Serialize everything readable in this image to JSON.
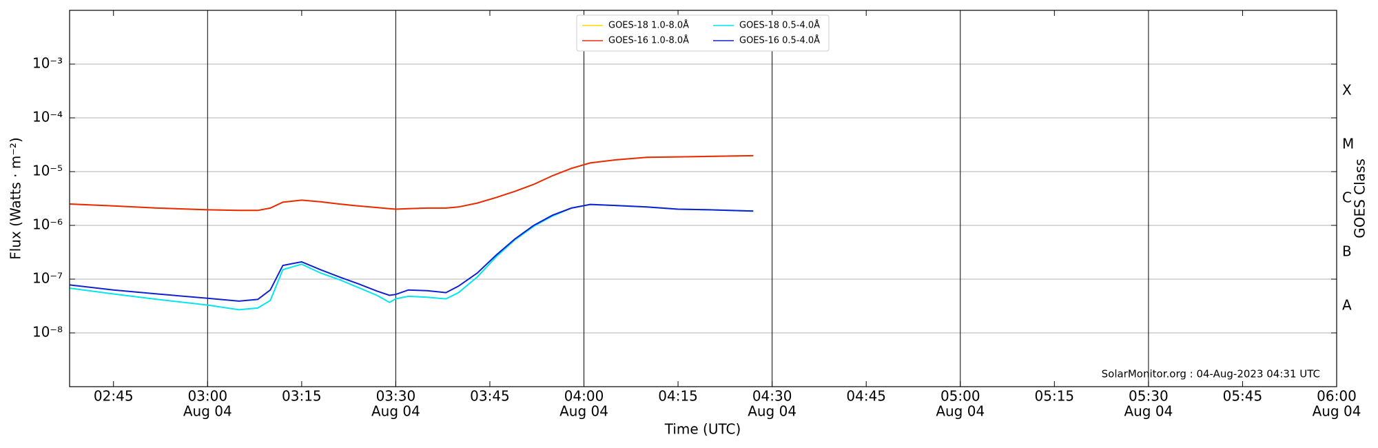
{
  "chart_data": {
    "type": "line",
    "ylabel": "Flux (Watts · m⁻²)",
    "xlabel": "Time (UTC)",
    "y2label": "GOES Class",
    "annotation": "SolarMonitor.org : 04-Aug-2023 04:31 UTC",
    "log_y": true,
    "grid": true,
    "legend_position": "top",
    "ylim": [
      1e-09,
      0.01
    ],
    "yticks": [
      {
        "value": 1e-08,
        "label": "10⁻⁸"
      },
      {
        "value": 1e-07,
        "label": "10⁻⁷"
      },
      {
        "value": 1e-06,
        "label": "10⁻⁶"
      },
      {
        "value": 1e-05,
        "label": "10⁻⁵"
      },
      {
        "value": 0.0001,
        "label": "10⁻⁴"
      },
      {
        "value": 0.001,
        "label": "10⁻³"
      }
    ],
    "goes_classes": [
      {
        "label": "A",
        "range": [
          1e-08,
          1e-07
        ]
      },
      {
        "label": "B",
        "range": [
          1e-07,
          1e-06
        ]
      },
      {
        "label": "C",
        "range": [
          1e-06,
          1e-05
        ]
      },
      {
        "label": "M",
        "range": [
          1e-05,
          0.0001
        ]
      },
      {
        "label": "X",
        "range": [
          0.0001,
          0.001
        ]
      }
    ],
    "xlim": [
      "02:38",
      "06:00"
    ],
    "xticks": [
      "02:45",
      {
        "value": "03:00",
        "label": [
          "03:00",
          "Aug 04"
        ]
      },
      "03:15",
      {
        "value": "03:30",
        "label": [
          "03:30",
          "Aug 04"
        ]
      },
      "03:45",
      {
        "value": "04:00",
        "label": [
          "04:00",
          "Aug 04"
        ]
      },
      "04:15",
      {
        "value": "04:30",
        "label": [
          "04:30",
          "Aug 04"
        ]
      },
      "04:45",
      {
        "value": "05:00",
        "label": [
          "05:00",
          "Aug 04"
        ]
      },
      "05:15",
      {
        "value": "05:30",
        "label": [
          "05:30",
          "Aug 04"
        ]
      },
      "05:45",
      {
        "value": "06:00",
        "label": [
          "06:00",
          "Aug 04"
        ]
      }
    ],
    "x": [
      "02:38",
      "02:45",
      "02:52",
      "03:00",
      "03:05",
      "03:08",
      "03:10",
      "03:12",
      "03:15",
      "03:18",
      "03:21",
      "03:24",
      "03:27",
      "03:29",
      "03:30",
      "03:32",
      "03:35",
      "03:38",
      "03:40",
      "03:43",
      "03:46",
      "03:49",
      "03:52",
      "03:55",
      "03:58",
      "04:01",
      "04:05",
      "04:10",
      "04:15",
      "04:20",
      "04:27"
    ],
    "series": [
      {
        "name": "GOES-18 1.0-8.0Å",
        "color": "#ffd700",
        "values": [
          2.5e-06,
          2.3e-06,
          2.1e-06,
          1.95e-06,
          1.9e-06,
          1.9e-06,
          2.1e-06,
          2.7e-06,
          2.95e-06,
          2.75e-06,
          2.5e-06,
          2.3e-06,
          2.15e-06,
          2.05e-06,
          2e-06,
          2.05e-06,
          2.1e-06,
          2.1e-06,
          2.2e-06,
          2.6e-06,
          3.3e-06,
          4.3e-06,
          5.8e-06,
          8.4e-06,
          1.15e-05,
          1.45e-05,
          1.65e-05,
          1.85e-05,
          1.88e-05,
          1.92e-05,
          1.98e-05
        ]
      },
      {
        "name": "GOES-16 1.0-8.0Å",
        "color": "#e8290b",
        "values": [
          2.5e-06,
          2.3e-06,
          2.1e-06,
          1.95e-06,
          1.9e-06,
          1.9e-06,
          2.1e-06,
          2.7e-06,
          2.95e-06,
          2.75e-06,
          2.5e-06,
          2.3e-06,
          2.15e-06,
          2.05e-06,
          2e-06,
          2.05e-06,
          2.1e-06,
          2.1e-06,
          2.2e-06,
          2.6e-06,
          3.3e-06,
          4.3e-06,
          5.8e-06,
          8.4e-06,
          1.15e-05,
          1.45e-05,
          1.65e-05,
          1.85e-05,
          1.88e-05,
          1.92e-05,
          1.98e-05
        ]
      },
      {
        "name": "GOES-18 0.5-4.0Å",
        "color": "#00e5ee",
        "values": [
          6.8e-08,
          5.3e-08,
          4.2e-08,
          3.3e-08,
          2.7e-08,
          2.9e-08,
          4e-08,
          1.5e-07,
          1.9e-07,
          1.3e-07,
          9.8e-08,
          7e-08,
          5e-08,
          3.7e-08,
          4.3e-08,
          4.8e-08,
          4.6e-08,
          4.3e-08,
          5.6e-08,
          1.1e-07,
          2.6e-07,
          5.4e-07,
          9.6e-07,
          1.5e-06,
          2.1e-06,
          2.45e-06,
          2.35e-06,
          2.2e-06,
          2e-06,
          1.95e-06,
          1.85e-06
        ]
      },
      {
        "name": "GOES-16 0.5-4.0Å",
        "color": "#1020d0",
        "values": [
          7.8e-08,
          6.3e-08,
          5.3e-08,
          4.4e-08,
          3.9e-08,
          4.2e-08,
          6.3e-08,
          1.8e-07,
          2.1e-07,
          1.5e-07,
          1.1e-07,
          8.2e-08,
          6e-08,
          5e-08,
          5.2e-08,
          6.3e-08,
          6.1e-08,
          5.6e-08,
          7.4e-08,
          1.3e-07,
          2.8e-07,
          5.6e-07,
          1e-06,
          1.55e-06,
          2.1e-06,
          2.45e-06,
          2.35e-06,
          2.2e-06,
          2e-06,
          1.95e-06,
          1.85e-06
        ]
      }
    ]
  }
}
